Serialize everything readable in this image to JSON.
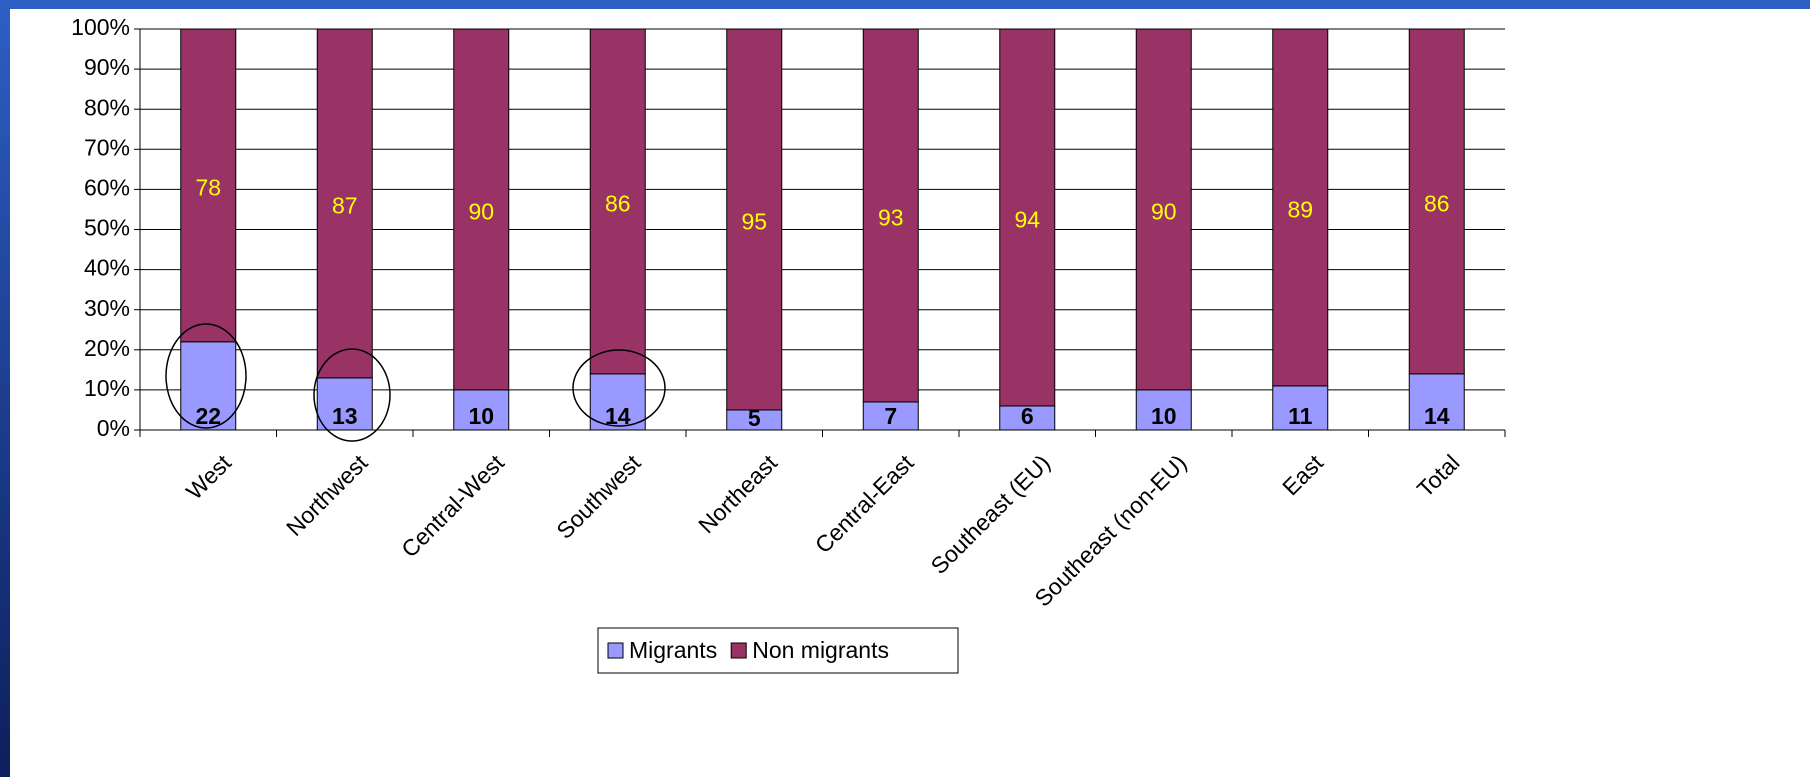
{
  "chart_data": {
    "type": "stacked_bar",
    "categories": [
      "West",
      "Northwest",
      "Central-West",
      "Southwest",
      "Northeast",
      "Central-East",
      "Southeast (EU)",
      "Southeast (non-EU)",
      "East",
      "Total"
    ],
    "series": [
      {
        "name": "Migrants",
        "color": "#9999ff",
        "values": [
          22,
          13,
          10,
          14,
          5,
          7,
          6,
          10,
          11,
          14
        ]
      },
      {
        "name": "Non migrants",
        "color": "#993366",
        "values": [
          78,
          87,
          90,
          86,
          95,
          93,
          94,
          90,
          89,
          86
        ]
      }
    ],
    "ylim": [
      0,
      100
    ],
    "yticks": [
      {
        "value": 0,
        "label": "0%"
      },
      {
        "value": 10,
        "label": "10%"
      },
      {
        "value": 20,
        "label": "20%"
      },
      {
        "value": 30,
        "label": "30%"
      },
      {
        "value": 40,
        "label": "40%"
      },
      {
        "value": 50,
        "label": "50%"
      },
      {
        "value": 60,
        "label": "60%"
      },
      {
        "value": 70,
        "label": "70%"
      },
      {
        "value": 80,
        "label": "80%"
      },
      {
        "value": 90,
        "label": "90%"
      },
      {
        "value": 100,
        "label": "100%"
      }
    ],
    "grid": true,
    "legend": "bottom"
  }
}
